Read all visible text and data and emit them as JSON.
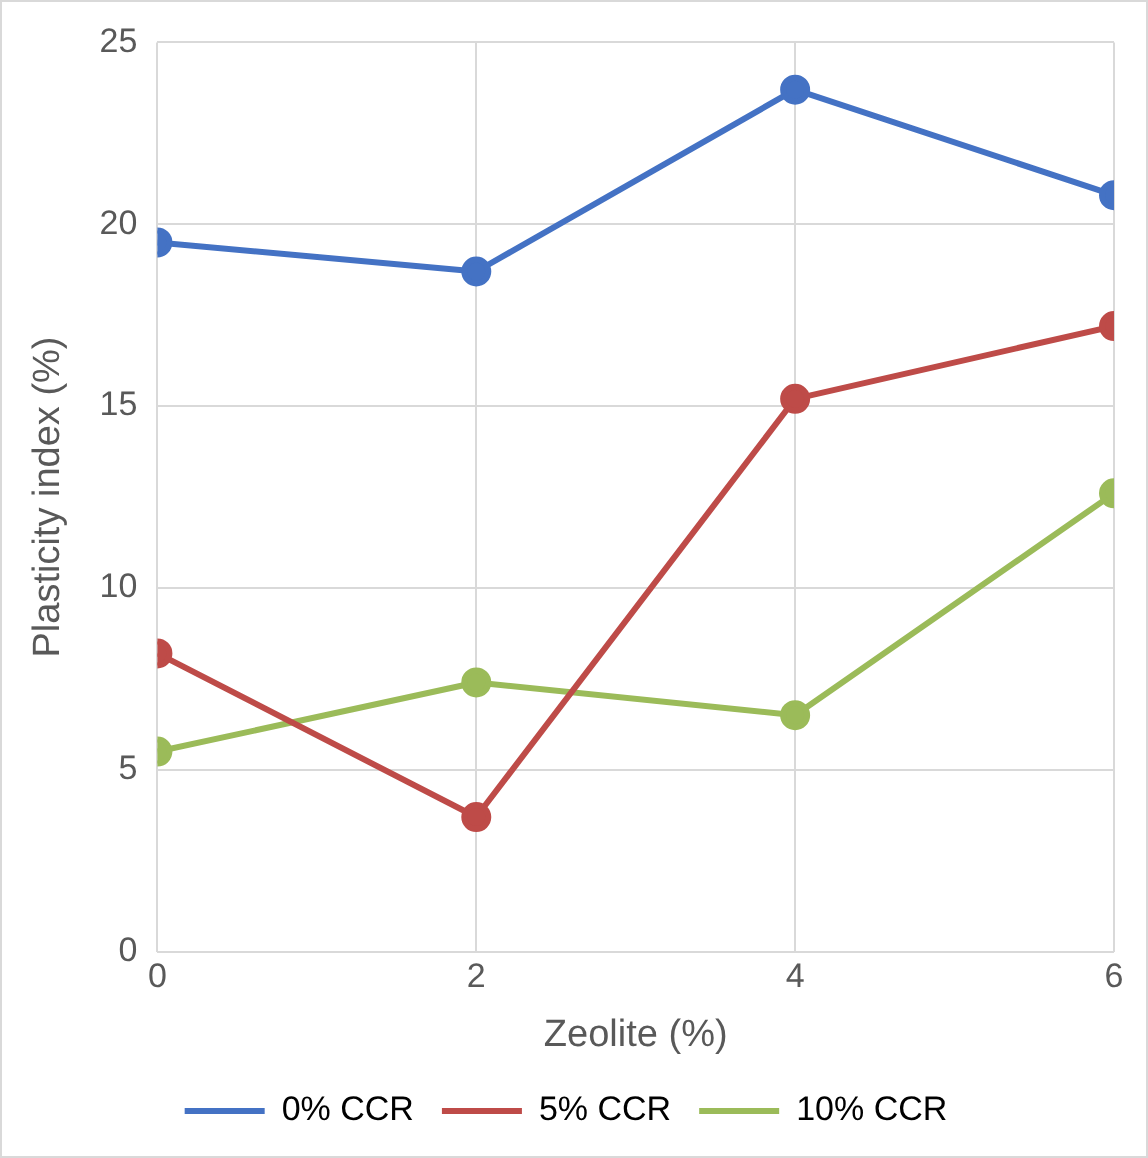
{
  "chart_data": {
    "type": "line",
    "xlabel": "Zeolite (%)",
    "ylabel": "Plasticity index (%)",
    "x": [
      0,
      2,
      4,
      6
    ],
    "series": [
      {
        "name": "0% CCR",
        "color": "#4472c4",
        "values": [
          19.5,
          18.7,
          23.7,
          20.8
        ]
      },
      {
        "name": "5% CCR",
        "color": "#be4b48",
        "values": [
          8.2,
          3.7,
          15.2,
          17.2
        ]
      },
      {
        "name": "10% CCR",
        "color": "#9bbb59",
        "values": [
          5.5,
          7.4,
          6.5,
          12.6
        ]
      }
    ],
    "xlim": [
      0,
      6
    ],
    "xticks": [
      0,
      2,
      4,
      6
    ],
    "ylim": [
      0,
      25
    ],
    "yticks": [
      0,
      5,
      10,
      15,
      20,
      25
    ],
    "grid": true,
    "legend": "bottom",
    "marker": "circle",
    "line_style": "solid"
  }
}
